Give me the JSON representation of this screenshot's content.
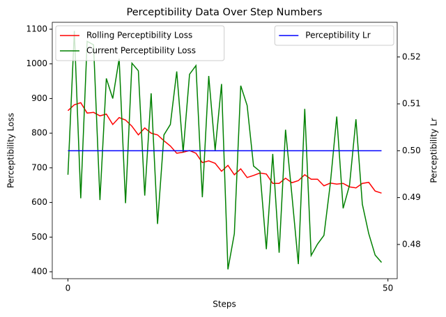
{
  "chart_data": {
    "type": "line",
    "title": "Perceptibility Data Over Step Numbers",
    "x_label": "Steps",
    "y_label": "Perceptibility Loss",
    "y2_label": "Perceptibility Lr",
    "x": [
      0,
      1,
      2,
      3,
      4,
      5,
      6,
      7,
      8,
      9,
      10,
      11,
      12,
      13,
      14,
      15,
      16,
      17,
      18,
      19,
      20,
      21,
      22,
      23,
      24,
      25,
      26,
      27,
      28,
      29,
      30,
      31,
      32,
      33,
      34,
      35,
      36,
      37,
      38,
      39,
      40,
      41,
      42,
      43,
      44,
      45,
      46,
      47,
      48,
      49
    ],
    "series": [
      {
        "name": "Rolling Perceptibility Loss",
        "color": "#ff0000",
        "values": [
          865,
          882,
          888,
          858,
          860,
          850,
          855,
          825,
          845,
          838,
          820,
          795,
          815,
          800,
          795,
          778,
          763,
          742,
          745,
          750,
          742,
          715,
          720,
          713,
          690,
          707,
          680,
          697,
          672,
          678,
          685,
          682,
          655,
          655,
          670,
          657,
          663,
          680,
          667,
          667,
          648,
          656,
          653,
          655,
          645,
          642,
          655,
          658,
          633,
          627
        ]
      },
      {
        "name": "Current Perceptibility Loss",
        "color": "#008000",
        "values": [
          680,
          1095,
          612,
          1065,
          1055,
          607,
          958,
          900,
          1015,
          598,
          1002,
          980,
          620,
          915,
          538,
          795,
          825,
          978,
          745,
          970,
          995,
          615,
          965,
          750,
          942,
          407,
          510,
          937,
          880,
          705,
          690,
          465,
          740,
          455,
          810,
          620,
          422,
          870,
          447,
          480,
          505,
          655,
          848,
          583,
          650,
          840,
          595,
          510,
          448,
          427
        ]
      },
      {
        "name": "Perceptibility Lr",
        "color": "#0000ff",
        "axis": "y2",
        "values": [
          0.5,
          0.5,
          0.5,
          0.5,
          0.5,
          0.5,
          0.5,
          0.5,
          0.5,
          0.5,
          0.5,
          0.5,
          0.5,
          0.5,
          0.5,
          0.5,
          0.5,
          0.5,
          0.5,
          0.5,
          0.5,
          0.5,
          0.5,
          0.5,
          0.5,
          0.5,
          0.5,
          0.5,
          0.5,
          0.5,
          0.5,
          0.5,
          0.5,
          0.5,
          0.5,
          0.5,
          0.5,
          0.5,
          0.5,
          0.5,
          0.5,
          0.5,
          0.5,
          0.5,
          0.5,
          0.5,
          0.5,
          0.5,
          0.5,
          0.5
        ]
      }
    ],
    "xlim": [
      -2.45,
      51.45
    ],
    "xticks": [
      0,
      50
    ],
    "ylim": [
      380,
      1120
    ],
    "yticks": [
      400,
      500,
      600,
      700,
      800,
      900,
      1000,
      1100
    ],
    "y2lim": [
      0.4727,
      0.5274
    ],
    "y2ticks": [
      0.48,
      0.49,
      {
        "value": 0.5,
        "label": "0.50"
      },
      0.51,
      0.52
    ],
    "legend": "upper left",
    "legend2": "upper right"
  }
}
